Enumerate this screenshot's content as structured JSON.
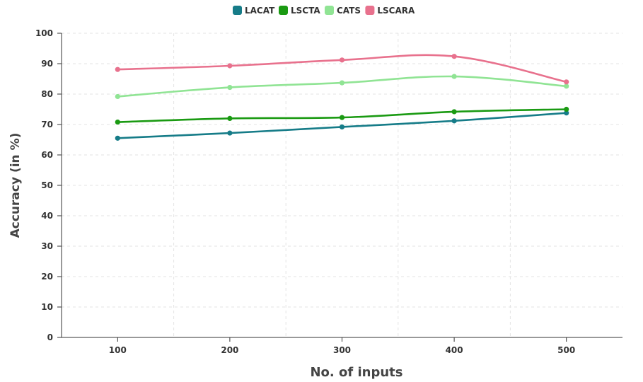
{
  "chart_data": {
    "type": "line",
    "title": "",
    "xlabel": "No. of inputs",
    "ylabel": "Accuracy (in %)",
    "x": [
      100,
      200,
      300,
      400,
      500
    ],
    "xlim": [
      50,
      550
    ],
    "ylim": [
      0,
      100
    ],
    "xticks": [
      100,
      200,
      300,
      400,
      500
    ],
    "yticks": [
      0,
      10,
      20,
      30,
      40,
      50,
      60,
      70,
      80,
      90,
      100
    ],
    "grid": true,
    "legend_position": "top-center",
    "series": [
      {
        "name": "LACAT",
        "color": "#167c88",
        "values": [
          65.5,
          67.2,
          69.2,
          71.2,
          73.8
        ]
      },
      {
        "name": "LSCTA",
        "color": "#1a9a12",
        "values": [
          70.8,
          72.0,
          72.3,
          74.2,
          75.0
        ]
      },
      {
        "name": "CATS",
        "color": "#90e494",
        "values": [
          79.2,
          82.2,
          83.7,
          85.8,
          82.6
        ]
      },
      {
        "name": "LSCARA",
        "color": "#e8718d",
        "values": [
          88.1,
          89.3,
          91.2,
          92.4,
          84.0
        ]
      }
    ]
  }
}
